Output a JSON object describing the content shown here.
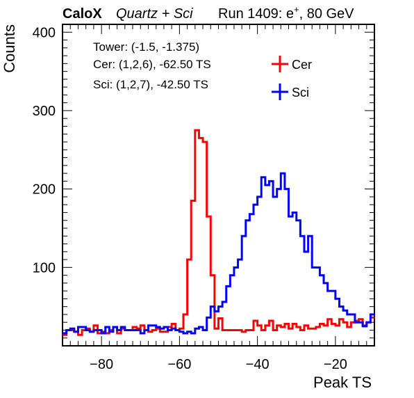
{
  "header": {
    "collab": "CaloX",
    "config": "Quartz + Sci",
    "run_prefix": "Run 1409: e",
    "run_sup": "+",
    "run_suffix": ", 80 GeV"
  },
  "info": {
    "tower": "Tower: (-1.5, -1.375)",
    "cer": "Cer: (1,2,6), -62.50 TS",
    "sci": "Sci: (1,2,7), -42.50 TS"
  },
  "colors": {
    "cer": "#ff0000",
    "sci": "#0000ff",
    "frame": "#000000"
  },
  "chart_data": {
    "type": "step",
    "xlabel": "Peak TS",
    "ylabel": "Counts",
    "xlim": [
      -90,
      -10
    ],
    "ylim": [
      0,
      410
    ],
    "xticks": [
      -80,
      -60,
      -40,
      -20
    ],
    "yticks": [
      100,
      200,
      300,
      400
    ],
    "bin_start": -90,
    "bin_width": 1,
    "legend_position": "top-right",
    "series": [
      {
        "name": "Cer",
        "color": "#ff0000",
        "values": [
          14,
          20,
          20,
          18,
          14,
          20,
          22,
          18,
          26,
          16,
          18,
          16,
          20,
          24,
          16,
          22,
          20,
          20,
          24,
          22,
          26,
          20,
          18,
          20,
          22,
          18,
          18,
          24,
          28,
          20,
          22,
          40,
          110,
          185,
          275,
          265,
          260,
          165,
          90,
          22,
          35,
          20,
          20,
          20,
          20,
          20,
          18,
          20,
          20,
          32,
          26,
          20,
          26,
          32,
          20,
          26,
          24,
          28,
          22,
          28,
          24,
          20,
          26,
          22,
          22,
          24,
          28,
          26,
          34,
          28,
          26,
          34,
          30,
          24,
          30,
          32,
          34,
          26,
          30,
          36
        ]
      },
      {
        "name": "Sci",
        "color": "#0000ff",
        "values": [
          16,
          20,
          22,
          18,
          24,
          24,
          20,
          18,
          20,
          20,
          16,
          24,
          18,
          24,
          20,
          24,
          20,
          20,
          20,
          20,
          16,
          20,
          26,
          26,
          24,
          22,
          24,
          20,
          22,
          20,
          18,
          16,
          18,
          16,
          22,
          24,
          20,
          36,
          50,
          44,
          50,
          56,
          76,
          90,
          100,
          110,
          140,
          160,
          168,
          180,
          190,
          215,
          205,
          210,
          190,
          200,
          220,
          200,
          165,
          170,
          160,
          140,
          120,
          140,
          100,
          100,
          90,
          80,
          70,
          70,
          60,
          50,
          45,
          40,
          40,
          30,
          30,
          25,
          30,
          40
        ]
      }
    ]
  }
}
